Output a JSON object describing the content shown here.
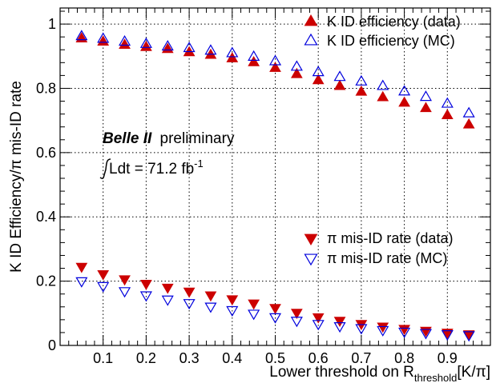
{
  "chart_data": {
    "type": "scatter",
    "xlabel_main": "Lower threshold on R",
    "xlabel_sub": "threshold",
    "xlabel_tail": "[K/π]",
    "ylabel": "K ID Efficiency/π mis-ID rate",
    "xlim": [
      0,
      1
    ],
    "ylim": [
      0,
      1.05
    ],
    "x_ticks": [
      0.1,
      0.2,
      0.3,
      0.4,
      0.5,
      0.6,
      0.7,
      0.8,
      0.9
    ],
    "x_tick_labels": [
      "0.1",
      "0.2",
      "0.3",
      "0.4",
      "0.5",
      "0.6",
      "0.7",
      "0.8",
      "0.9"
    ],
    "y_ticks": [
      0,
      0.2,
      0.4,
      0.6,
      0.8,
      1
    ],
    "y_tick_labels": [
      "0",
      "0.2",
      "0.4",
      "0.6",
      "0.8",
      "1"
    ],
    "grid": true,
    "x": [
      0.05,
      0.1,
      0.15,
      0.2,
      0.25,
      0.3,
      0.35,
      0.4,
      0.45,
      0.5,
      0.55,
      0.6,
      0.65,
      0.7,
      0.75,
      0.8,
      0.85,
      0.9,
      0.95
    ],
    "series": [
      {
        "name": "K ID efficiency (data)",
        "marker": "triangle-up",
        "filled": true,
        "color": "#cc0000",
        "values": [
          0.955,
          0.945,
          0.935,
          0.928,
          0.922,
          0.912,
          0.904,
          0.893,
          0.881,
          0.863,
          0.844,
          0.825,
          0.807,
          0.789,
          0.772,
          0.755,
          0.738,
          0.716,
          0.687
        ]
      },
      {
        "name": "K ID efficiency (MC)",
        "marker": "triangle-up",
        "filled": false,
        "color": "#0000dd",
        "values": [
          0.962,
          0.954,
          0.945,
          0.938,
          0.93,
          0.925,
          0.917,
          0.909,
          0.898,
          0.884,
          0.867,
          0.85,
          0.835,
          0.821,
          0.807,
          0.79,
          0.773,
          0.752,
          0.722
        ]
      },
      {
        "name": "π mis-ID rate (data)",
        "marker": "triangle-down",
        "filled": true,
        "color": "#cc0000",
        "values": [
          0.245,
          0.222,
          0.206,
          0.192,
          0.18,
          0.168,
          0.156,
          0.144,
          0.131,
          0.117,
          0.102,
          0.088,
          0.077,
          0.067,
          0.059,
          0.052,
          0.046,
          0.04,
          0.035
        ]
      },
      {
        "name": "π mis-ID rate (MC)",
        "marker": "triangle-down",
        "filled": false,
        "color": "#0000dd",
        "values": [
          0.2,
          0.185,
          0.169,
          0.156,
          0.143,
          0.132,
          0.121,
          0.11,
          0.099,
          0.088,
          0.077,
          0.067,
          0.06,
          0.054,
          0.048,
          0.043,
          0.039,
          0.035,
          0.032
        ]
      }
    ],
    "legend_upper_placement": "top-right",
    "legend_lower_placement": "lower-right",
    "annotation": {
      "experiment": "Belle II",
      "status": "preliminary",
      "lumi_prefix": "Ldt = 71.2 fb",
      "lumi_exp": "-1"
    }
  }
}
